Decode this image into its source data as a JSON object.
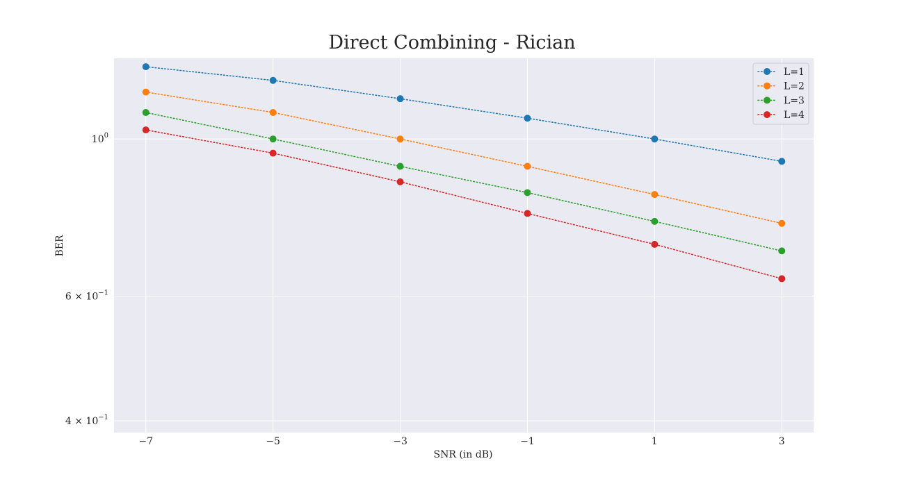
{
  "chart_data": {
    "type": "line",
    "title": "Direct Combining - Rician",
    "xlabel": "SNR (in dB)",
    "ylabel": "BER",
    "x": [
      -7,
      -5,
      -3,
      -1,
      1,
      3
    ],
    "x_tick_labels": [
      "−7",
      "−5",
      "−3",
      "−1",
      "1",
      "3"
    ],
    "y_scale": "log",
    "ylim": [
      0.385,
      1.3
    ],
    "y_ticks": [
      {
        "value": 1.0,
        "base": "10",
        "exp": "0"
      },
      {
        "value": 0.6,
        "base": "6 × 10",
        "exp": "−1"
      },
      {
        "value": 0.4,
        "base": "4 × 10",
        "exp": "−1"
      }
    ],
    "grid": true,
    "legend_position": "top-right",
    "series": [
      {
        "name": "L=1",
        "color": "#1f77b4",
        "values": [
          1.265,
          1.21,
          1.14,
          1.07,
          1.0,
          0.93
        ]
      },
      {
        "name": "L=2",
        "color": "#ff7f0e",
        "values": [
          1.165,
          1.09,
          1.0,
          0.915,
          0.835,
          0.76
        ]
      },
      {
        "name": "L=3",
        "color": "#2ca02c",
        "values": [
          1.09,
          1.0,
          0.915,
          0.84,
          0.765,
          0.695
        ]
      },
      {
        "name": "L=4",
        "color": "#d62728",
        "values": [
          1.03,
          0.955,
          0.87,
          0.785,
          0.71,
          0.635
        ]
      }
    ],
    "colors": {
      "plot_background": "#eaeaf2",
      "grid": "#ffffff",
      "text": "#262626"
    }
  }
}
